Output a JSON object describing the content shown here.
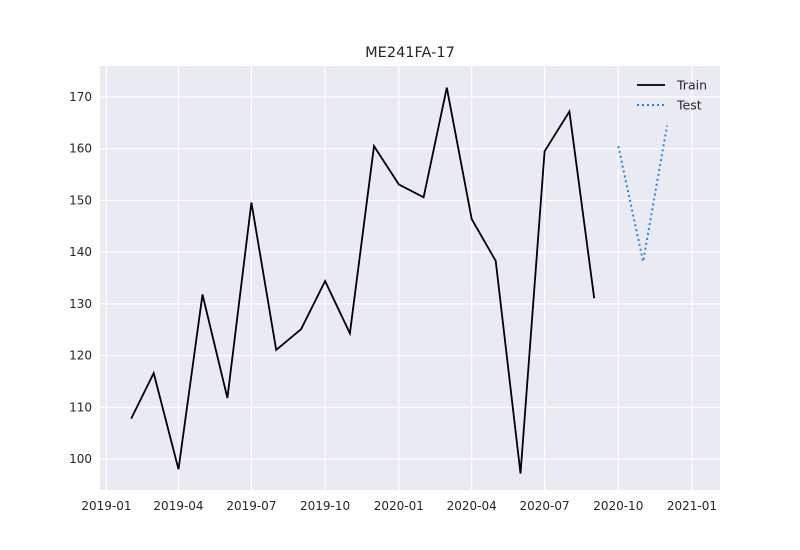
{
  "chart_data": {
    "type": "line",
    "title": "ME241FA-17",
    "xlabel": "",
    "ylabel": "",
    "x_ticks": [
      "2019-01",
      "2019-04",
      "2019-07",
      "2019-10",
      "2020-01",
      "2020-04",
      "2020-07",
      "2020-10",
      "2021-01"
    ],
    "y_ticks": [
      100,
      110,
      120,
      130,
      140,
      150,
      160,
      170
    ],
    "xlim": [
      "2018-12-24",
      "2021-02-05"
    ],
    "ylim": [
      94,
      176
    ],
    "grid": true,
    "legend_position": "top-right",
    "series": [
      {
        "name": "Train",
        "color": "#000000",
        "style": "solid",
        "points": [
          {
            "x": "2019-02-01",
            "y": 107.8
          },
          {
            "x": "2019-03-01",
            "y": 116.6
          },
          {
            "x": "2019-04-01",
            "y": 98.0
          },
          {
            "x": "2019-05-01",
            "y": 131.8
          },
          {
            "x": "2019-06-01",
            "y": 111.8
          },
          {
            "x": "2019-07-01",
            "y": 149.6
          },
          {
            "x": "2019-08-01",
            "y": 121.1
          },
          {
            "x": "2019-09-01",
            "y": 125.1
          },
          {
            "x": "2019-10-01",
            "y": 134.4
          },
          {
            "x": "2019-11-01",
            "y": 124.3
          },
          {
            "x": "2019-12-01",
            "y": 160.5
          },
          {
            "x": "2020-01-01",
            "y": 153.1
          },
          {
            "x": "2020-02-01",
            "y": 150.6
          },
          {
            "x": "2020-03-01",
            "y": 171.8
          },
          {
            "x": "2020-04-01",
            "y": 146.4
          },
          {
            "x": "2020-05-01",
            "y": 138.3
          },
          {
            "x": "2020-06-01",
            "y": 97.2
          },
          {
            "x": "2020-07-01",
            "y": 159.5
          },
          {
            "x": "2020-08-01",
            "y": 167.2
          },
          {
            "x": "2020-09-01",
            "y": 131.1
          }
        ]
      },
      {
        "name": "Test",
        "color": "#1e88e5",
        "style": "dotted",
        "points": [
          {
            "x": "2020-10-01",
            "y": 160.5
          },
          {
            "x": "2020-11-01",
            "y": 138.2
          },
          {
            "x": "2020-12-01",
            "y": 164.5
          }
        ]
      }
    ]
  }
}
